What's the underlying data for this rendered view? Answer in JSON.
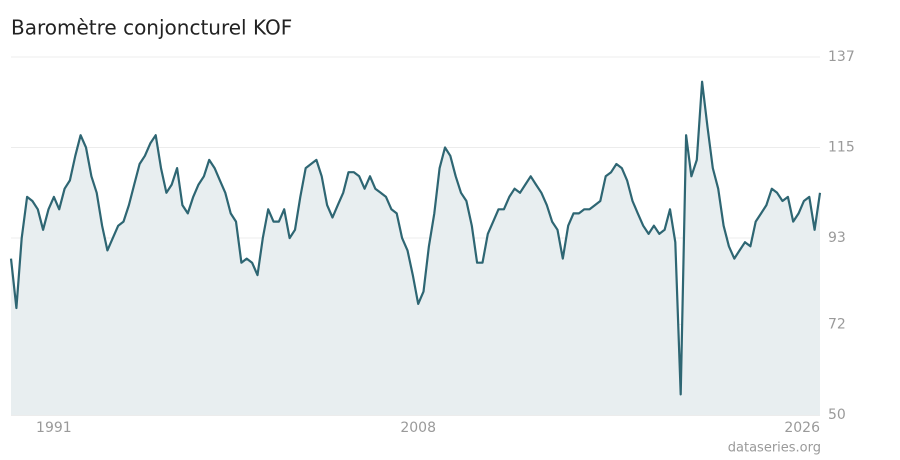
{
  "chart_data": {
    "type": "line",
    "title": "Baromètre conjoncturel KOF",
    "source": "dataseries.org",
    "x": [
      1989,
      1989.25,
      1989.5,
      1989.75,
      1990,
      1990.25,
      1990.5,
      1990.75,
      1991,
      1991.25,
      1991.5,
      1991.75,
      1992,
      1992.25,
      1992.5,
      1992.75,
      1993,
      1993.25,
      1993.5,
      1993.75,
      1994,
      1994.25,
      1994.5,
      1994.75,
      1995,
      1995.25,
      1995.5,
      1995.75,
      1996,
      1996.25,
      1996.5,
      1996.75,
      1997,
      1997.25,
      1997.5,
      1997.75,
      1998,
      1998.25,
      1998.5,
      1998.75,
      1999,
      1999.25,
      1999.5,
      1999.75,
      2000,
      2000.25,
      2000.5,
      2000.75,
      2001,
      2001.25,
      2001.5,
      2001.75,
      2002,
      2002.25,
      2002.5,
      2002.75,
      2003,
      2003.25,
      2003.5,
      2003.75,
      2004,
      2004.25,
      2004.5,
      2004.75,
      2005,
      2005.25,
      2005.5,
      2005.75,
      2006,
      2006.25,
      2006.5,
      2006.75,
      2007,
      2007.25,
      2007.5,
      2007.75,
      2008,
      2008.25,
      2008.5,
      2008.75,
      2009,
      2009.25,
      2009.5,
      2009.75,
      2010,
      2010.25,
      2010.5,
      2010.75,
      2011,
      2011.25,
      2011.5,
      2011.75,
      2012,
      2012.25,
      2012.5,
      2012.75,
      2013,
      2013.25,
      2013.5,
      2013.75,
      2014,
      2014.25,
      2014.5,
      2014.75,
      2015,
      2015.25,
      2015.5,
      2015.75,
      2016,
      2016.25,
      2016.5,
      2016.75,
      2017,
      2017.25,
      2017.5,
      2017.75,
      2018,
      2018.25,
      2018.5,
      2018.75,
      2019,
      2019.25,
      2019.5,
      2019.75,
      2020,
      2020.25,
      2020.5,
      2020.75,
      2021,
      2021.25,
      2021.5,
      2021.75,
      2022,
      2022.25,
      2022.5,
      2022.75,
      2023,
      2023.25,
      2023.5,
      2023.75,
      2024,
      2024.25,
      2024.5,
      2024.75,
      2025,
      2025.25,
      2025.5,
      2025.75,
      2026,
      2026.25,
      2026.5,
      2026.75
    ],
    "series": [
      {
        "name": "Baromètre conjoncturel KOF",
        "color": "#2e6673",
        "values": [
          88,
          76,
          93,
          103,
          102,
          100,
          95,
          100,
          103,
          100,
          105,
          107,
          113,
          118,
          115,
          108,
          104,
          96,
          90,
          93,
          96,
          97,
          101,
          106,
          111,
          113,
          116,
          118,
          110,
          104,
          106,
          110,
          101,
          99,
          103,
          106,
          108,
          112,
          110,
          107,
          104,
          99,
          97,
          87,
          88,
          87,
          84,
          93,
          100,
          97,
          97,
          100,
          93,
          95,
          103,
          110,
          111,
          112,
          108,
          101,
          98,
          101,
          104,
          109,
          109,
          108,
          105,
          108,
          105,
          104,
          103,
          100,
          99,
          93,
          90,
          84,
          77,
          80,
          91,
          99,
          110,
          115,
          113,
          108,
          104,
          102,
          96,
          87,
          87,
          94,
          97,
          100,
          100,
          103,
          105,
          104,
          106,
          108,
          106,
          104,
          101,
          97,
          95,
          88,
          96,
          99,
          99,
          100,
          100,
          101,
          102,
          108,
          109,
          111,
          110,
          107,
          102,
          99,
          96,
          94,
          96,
          94,
          95,
          100,
          92,
          55,
          118,
          108,
          112,
          131,
          120,
          110,
          105,
          96,
          91,
          88,
          90,
          92,
          91,
          97,
          99,
          101,
          105,
          104,
          102,
          103,
          97,
          99,
          102,
          103,
          95,
          104
        ]
      }
    ],
    "xlim": [
      1989,
      2026.75
    ],
    "xticks": [
      1991,
      2008,
      2026
    ],
    "ylim": [
      50,
      137
    ],
    "yticks": [
      50,
      72,
      93,
      115,
      137
    ],
    "grid": true
  }
}
